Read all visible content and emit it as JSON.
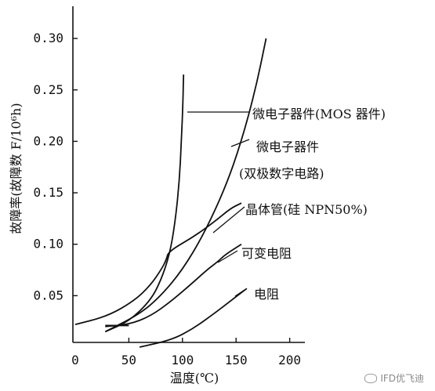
{
  "chart_data": {
    "type": "line",
    "xlabel": "温度(℃)",
    "ylabel": "故障率(故障数 F/10⁶h)",
    "xlim": [
      0,
      200
    ],
    "ylim": [
      0,
      0.3
    ],
    "x_ticks": [
      "0",
      "50",
      "100",
      "150",
      "200"
    ],
    "y_ticks": [
      "0.05",
      "0.10",
      "0.15",
      "0.20",
      "0.25",
      "0.30"
    ],
    "grid": false,
    "series": [
      {
        "name": "微电子器件(MOS 器件)",
        "points": [
          [
            28,
            0.015
          ],
          [
            50,
            0.025
          ],
          [
            70,
            0.045
          ],
          [
            80,
            0.065
          ],
          [
            88,
            0.09
          ],
          [
            93,
            0.12
          ],
          [
            97,
            0.16
          ],
          [
            99,
            0.2
          ],
          [
            100.5,
            0.24
          ],
          [
            101,
            0.265
          ]
        ]
      },
      {
        "name": "微电子器件 (双极数字电路)",
        "points": [
          [
            28,
            0.015
          ],
          [
            60,
            0.032
          ],
          [
            80,
            0.05
          ],
          [
            100,
            0.075
          ],
          [
            120,
            0.11
          ],
          [
            140,
            0.155
          ],
          [
            155,
            0.2
          ],
          [
            168,
            0.25
          ],
          [
            178,
            0.3
          ]
        ]
      },
      {
        "name": "晶体管(硅 NPN50%)",
        "points": [
          [
            0,
            0.022
          ],
          [
            30,
            0.03
          ],
          [
            55,
            0.045
          ],
          [
            70,
            0.06
          ],
          [
            80,
            0.075
          ],
          [
            85,
            0.085
          ],
          [
            87,
            0.093
          ],
          [
            110,
            0.107
          ],
          [
            130,
            0.122
          ],
          [
            145,
            0.135
          ],
          [
            155,
            0.14
          ]
        ]
      },
      {
        "name": "可变电阻",
        "points": [
          [
            28,
            0.02
          ],
          [
            50,
            0.022
          ],
          [
            70,
            0.03
          ],
          [
            90,
            0.045
          ],
          [
            110,
            0.063
          ],
          [
            125,
            0.077
          ],
          [
            133,
            0.083
          ],
          [
            140,
            0.09
          ],
          [
            155,
            0.1
          ]
        ]
      },
      {
        "name": "电阻",
        "points": [
          [
            60,
            0.0
          ],
          [
            90,
            0.007
          ],
          [
            110,
            0.018
          ],
          [
            130,
            0.033
          ],
          [
            145,
            0.045
          ],
          [
            160,
            0.057
          ]
        ]
      }
    ]
  },
  "watermark": {
    "text": "IFD优飞迪",
    "icon": "wechat-icon"
  }
}
